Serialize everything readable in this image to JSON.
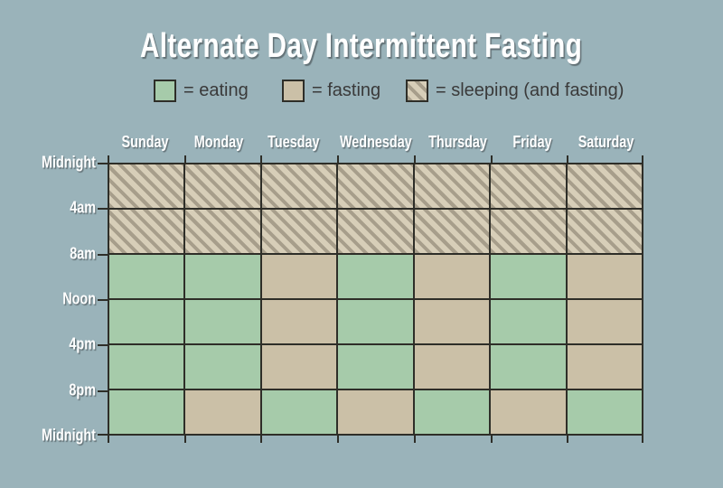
{
  "title": "Alternate Day Intermittent Fasting",
  "colors": {
    "background": "#9ab3ba",
    "eating": "#a6cbaa",
    "fasting": "#cbc0a7",
    "sleep_base": "#d7ceb8",
    "sleep_stripe": "#a79e8b",
    "grid_line": "#2e2e28",
    "label_text": "#ffffff",
    "legend_text": "#3a3a3a"
  },
  "legend": {
    "items": [
      {
        "key": "eating",
        "label": "= eating"
      },
      {
        "key": "fasting",
        "label": "= fasting"
      },
      {
        "key": "sleeping",
        "label": "= sleeping (and fasting)"
      }
    ]
  },
  "chart_data": {
    "type": "heatmap",
    "title": "Alternate Day Intermittent Fasting",
    "xlabel": "",
    "ylabel": "",
    "legend_position": "top",
    "grid": "on",
    "columns": [
      "Sunday",
      "Monday",
      "Tuesday",
      "Wednesday",
      "Thursday",
      "Friday",
      "Saturday"
    ],
    "row_boundaries": [
      "Midnight",
      "4am",
      "8am",
      "Noon",
      "4pm",
      "8pm",
      "Midnight"
    ],
    "row_spans": [
      "Midnight-4am",
      "4am-8am",
      "8am-Noon",
      "Noon-4pm",
      "4pm-8pm",
      "8pm-Midnight"
    ],
    "states": [
      "eating",
      "fasting",
      "sleeping"
    ],
    "cells": [
      [
        "sleeping",
        "sleeping",
        "sleeping",
        "sleeping",
        "sleeping",
        "sleeping",
        "sleeping"
      ],
      [
        "sleeping",
        "sleeping",
        "sleeping",
        "sleeping",
        "sleeping",
        "sleeping",
        "sleeping"
      ],
      [
        "eating",
        "eating",
        "fasting",
        "eating",
        "fasting",
        "eating",
        "fasting"
      ],
      [
        "eating",
        "eating",
        "fasting",
        "eating",
        "fasting",
        "eating",
        "fasting"
      ],
      [
        "eating",
        "eating",
        "fasting",
        "eating",
        "fasting",
        "eating",
        "fasting"
      ],
      [
        "eating",
        "fasting",
        "eating",
        "fasting",
        "eating",
        "fasting",
        "eating"
      ]
    ]
  }
}
